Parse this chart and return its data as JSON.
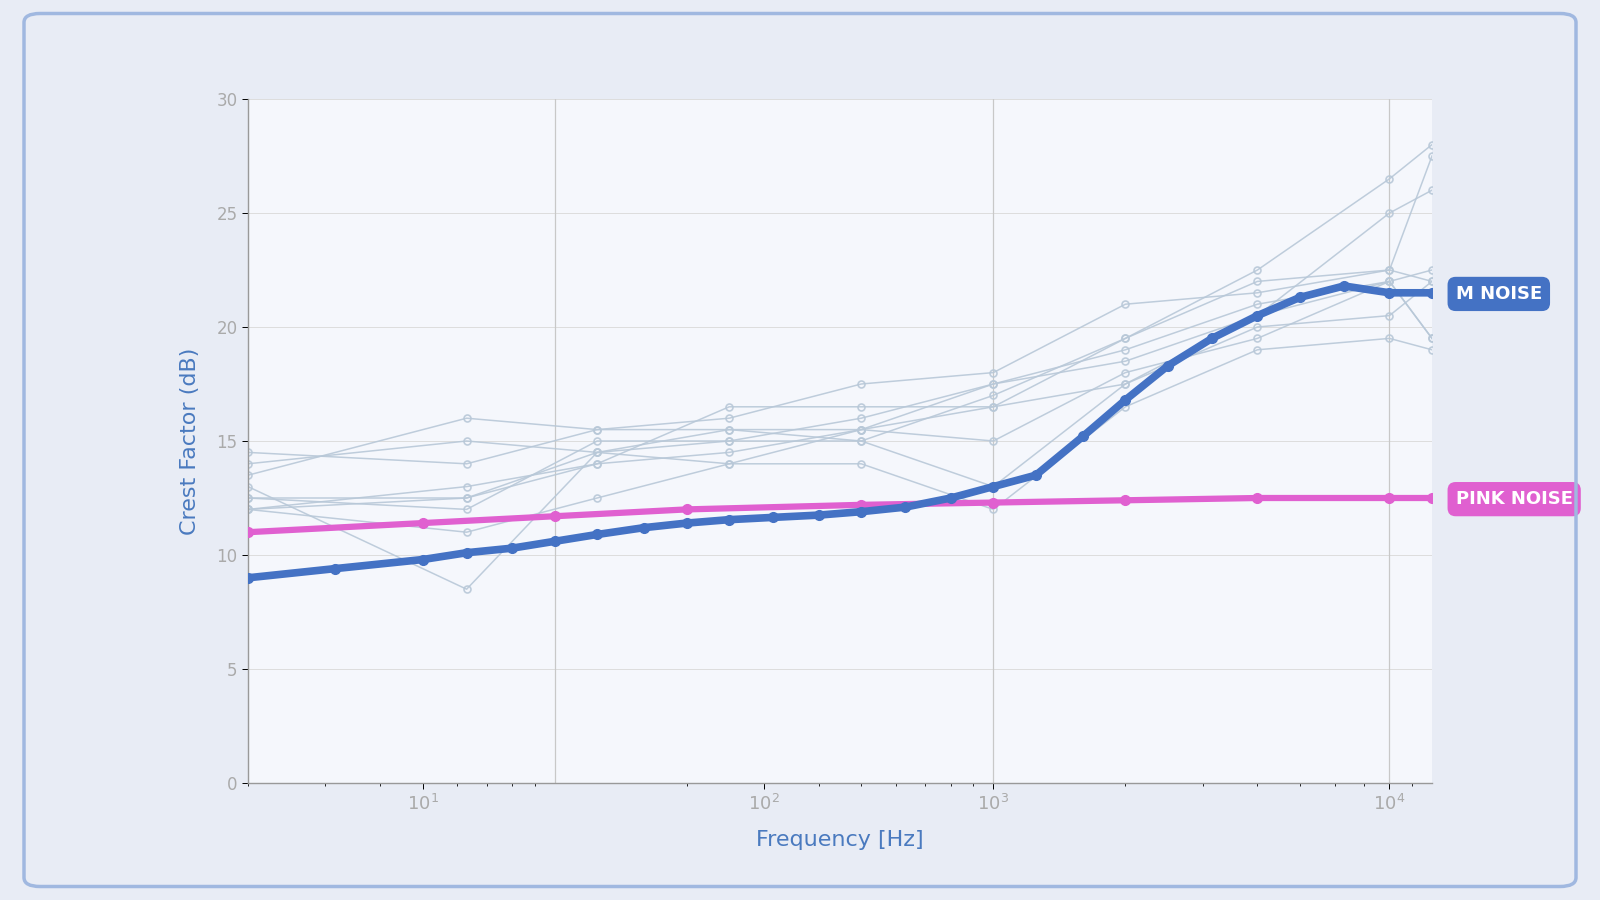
{
  "background_color": "#e8ecf5",
  "panel_color": "#f5f7fc",
  "border_color": "#a0b8e0",
  "xlabel": "Frequency [Hz]",
  "ylabel": "Crest Factor (dB)",
  "xlabel_color": "#4a7abf",
  "ylabel_color": "#4a7abf",
  "xlim": [
    20,
    10000
  ],
  "ylim": [
    0,
    30
  ],
  "yticks": [
    0,
    5,
    10,
    15,
    20,
    25,
    30
  ],
  "m_noise_color": "#4472c4",
  "pink_noise_color": "#e060d0",
  "gray_line_color": "#b8c8d8",
  "m_noise_x": [
    20,
    31.5,
    50,
    63,
    80,
    100,
    125,
    160,
    200,
    250,
    315,
    400,
    500,
    630,
    800,
    1000,
    1250,
    1600,
    2000,
    2500,
    3150,
    4000,
    5000,
    6300,
    8000,
    10000
  ],
  "m_noise_y": [
    9.0,
    9.4,
    9.8,
    10.1,
    10.3,
    10.6,
    10.9,
    11.2,
    11.4,
    11.55,
    11.65,
    11.75,
    11.9,
    12.1,
    12.5,
    13.0,
    13.5,
    15.2,
    16.8,
    18.3,
    19.5,
    20.5,
    21.3,
    21.8,
    21.5,
    21.5
  ],
  "pink_noise_x": [
    20,
    50,
    100,
    200,
    500,
    1000,
    2000,
    4000,
    8000,
    10000
  ],
  "pink_noise_y": [
    11.0,
    11.4,
    11.7,
    12.0,
    12.2,
    12.3,
    12.4,
    12.5,
    12.5,
    12.5
  ],
  "gray_lines": [
    {
      "x": [
        20,
        63,
        125,
        250,
        500,
        1000,
        2000,
        4000,
        8000,
        10000
      ],
      "y": [
        14.5,
        14.0,
        15.5,
        15.5,
        15.5,
        17.5,
        19.0,
        21.0,
        22.0,
        19.5
      ]
    },
    {
      "x": [
        20,
        63,
        125,
        250,
        500,
        1000,
        2000,
        4000,
        8000,
        10000
      ],
      "y": [
        12.5,
        12.0,
        15.0,
        15.0,
        16.0,
        17.5,
        18.5,
        20.5,
        25.0,
        26.0
      ]
    },
    {
      "x": [
        20,
        63,
        125,
        250,
        500,
        1000,
        2000,
        4000,
        8000,
        10000
      ],
      "y": [
        12.0,
        13.0,
        14.0,
        14.5,
        15.5,
        15.0,
        18.0,
        19.5,
        22.0,
        22.5
      ]
    },
    {
      "x": [
        20,
        63,
        125,
        250,
        500,
        1000,
        2000,
        4000,
        8000,
        10000
      ],
      "y": [
        13.5,
        16.0,
        15.5,
        16.0,
        17.5,
        18.0,
        21.0,
        21.5,
        22.5,
        27.5
      ]
    },
    {
      "x": [
        20,
        63,
        125,
        250,
        500,
        1000,
        2000,
        4000,
        8000,
        10000
      ],
      "y": [
        14.0,
        15.0,
        14.5,
        15.0,
        15.0,
        17.0,
        19.5,
        22.0,
        22.5,
        22.0
      ]
    },
    {
      "x": [
        20,
        63,
        125,
        250,
        500,
        1000,
        2000,
        4000,
        8000,
        10000
      ],
      "y": [
        12.5,
        12.5,
        14.5,
        15.5,
        15.0,
        13.0,
        17.5,
        20.5,
        22.0,
        19.5
      ]
    },
    {
      "x": [
        20,
        63,
        125,
        250,
        500,
        1000,
        2000,
        4000,
        8000,
        10000
      ],
      "y": [
        13.0,
        8.5,
        14.5,
        14.0,
        15.5,
        16.5,
        19.5,
        22.5,
        26.5,
        28.0
      ]
    },
    {
      "x": [
        20,
        63,
        125,
        250,
        500,
        1000,
        2000,
        4000,
        8000,
        10000
      ],
      "y": [
        12.0,
        11.0,
        12.5,
        14.0,
        14.0,
        12.0,
        16.5,
        19.0,
        19.5,
        19.0
      ]
    },
    {
      "x": [
        20,
        63,
        125,
        250,
        500,
        1000,
        2000,
        4000,
        8000,
        10000
      ],
      "y": [
        12.0,
        12.5,
        14.0,
        16.5,
        16.5,
        16.5,
        17.5,
        20.0,
        20.5,
        22.0
      ]
    }
  ],
  "vline_x": [
    100,
    1000,
    8000
  ],
  "vline_color": "#c8c8c8",
  "tick_color": "#aaaaaa",
  "spine_color": "#999999",
  "annotation_m_noise": "M NOISE",
  "annotation_pink_noise": "PINK NOISE",
  "label_m_noise_bg": "#4472c4",
  "label_pink_noise_bg": "#e060d0",
  "label_text_color": "#ffffff"
}
